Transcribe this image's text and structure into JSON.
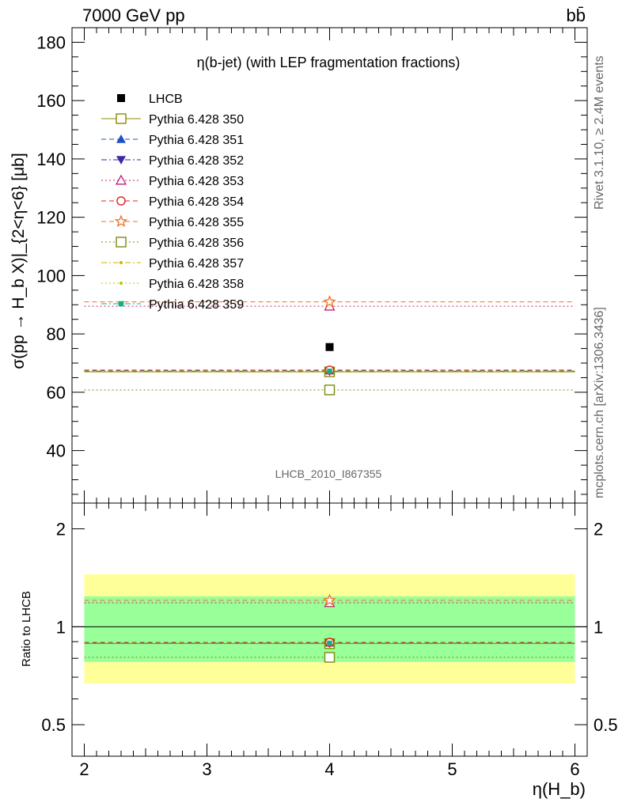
{
  "header": {
    "left": "7000 GeV pp",
    "right": "bb̄"
  },
  "side": {
    "rivet": "Rivet 3.1.10, ≥ 2.4M events",
    "mcplots": "mcplots.cern.ch [arXiv:1306.3436]"
  },
  "chart_data": {
    "type": "scatter",
    "title": "η(b-jet) (with LEP fragmentation fractions)",
    "watermark": "LHCB_2010_I867355",
    "xlabel": "η(H_b)",
    "ylabel": "σ(pp → H_b X)|_{2<η<6} [μb]",
    "ratio_ylabel": "Ratio to LHCB",
    "xlim": [
      1.9,
      6.1
    ],
    "xticks": [
      "2",
      "3",
      "4",
      "5",
      "6"
    ],
    "ylim": [
      22,
      185
    ],
    "yticks": [
      "40",
      "60",
      "80",
      "100",
      "120",
      "140",
      "160",
      "180"
    ],
    "ratio_ylim": [
      0.4,
      2.4
    ],
    "ratio_yticks": [
      "0.5",
      "1",
      "2"
    ],
    "x_range": [
      2,
      6
    ],
    "x_center": 4,
    "data": {
      "name": "LHCB",
      "value": 75.5,
      "band_inner": [
        0.78,
        1.24
      ],
      "band_outer": [
        0.67,
        1.45
      ]
    },
    "series": [
      {
        "name": "Pythia 6.428 350",
        "value": 67.0,
        "color": "#8b8b00",
        "marker": "open-square",
        "dash": "solid"
      },
      {
        "name": "Pythia 6.428 351",
        "value": 67.4,
        "color": "#1f4fc4",
        "marker": "triangle-up",
        "dash": "dashed"
      },
      {
        "name": "Pythia 6.428 352",
        "value": 67.2,
        "color": "#3a2aa8",
        "marker": "triangle-down",
        "dash": "dashdot"
      },
      {
        "name": "Pythia 6.428 353",
        "value": 89.5,
        "color": "#c0207a",
        "marker": "open-triangle-up",
        "dash": "dotted"
      },
      {
        "name": "Pythia 6.428 354",
        "value": 67.6,
        "color": "#e0201e",
        "marker": "open-circle",
        "dash": "dashed"
      },
      {
        "name": "Pythia 6.428 355",
        "value": 91.0,
        "color": "#f07020",
        "marker": "open-star",
        "dash": "dashed"
      },
      {
        "name": "Pythia 6.428 356",
        "value": 60.8,
        "color": "#7a8a10",
        "marker": "open-square",
        "dash": "dotted"
      },
      {
        "name": "Pythia 6.428 357",
        "value": 67.3,
        "color": "#d4b000",
        "marker": "dot",
        "dash": "dashdot"
      },
      {
        "name": "Pythia 6.428 358",
        "value": 67.1,
        "color": "#b8c800",
        "marker": "dot",
        "dash": "dotted"
      },
      {
        "name": "Pythia 6.428 359",
        "value": 67.2,
        "color": "#10b080",
        "marker": "filled-square-small",
        "dash": "dashdot"
      }
    ]
  }
}
